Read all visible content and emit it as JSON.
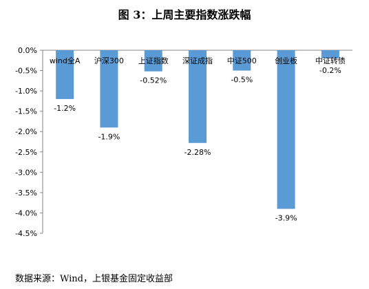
{
  "figure": {
    "title": "图 3：上周主要指数涨跌幅",
    "source": "数据来源：Wind，上银基金固定收益部"
  },
  "chart_data": {
    "type": "bar",
    "categories": [
      "wind全A",
      "沪深300",
      "上证指数",
      "深证成指",
      "中证500",
      "创业板",
      "中证转债"
    ],
    "values": [
      -1.2,
      -1.9,
      -0.52,
      -2.28,
      -0.5,
      -3.9,
      -0.2
    ],
    "data_labels": [
      "-1.2%",
      "-1.9%",
      "-0.52%",
      "-2.28%",
      "-0.5%",
      "-3.9%",
      "-0.2%"
    ],
    "ylim": [
      -4.5,
      0
    ],
    "yticks": [
      0,
      -0.5,
      -1,
      -1.5,
      -2,
      -2.5,
      -3,
      -3.5,
      -4,
      -4.5
    ],
    "ytick_labels": [
      "0.0%",
      "-0.5%",
      "-1.0%",
      "-1.5%",
      "-2.0%",
      "-2.5%",
      "-3.0%",
      "-3.5%",
      "-4.0%",
      "-4.5%"
    ],
    "bar_color": "#5B9BD5",
    "grid": false,
    "legend": "none"
  }
}
